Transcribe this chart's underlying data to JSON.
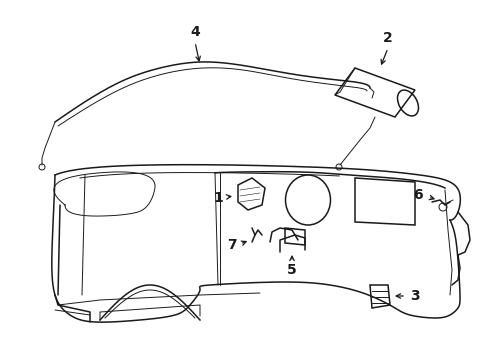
{
  "background_color": "#ffffff",
  "line_color": "#1a1a1a",
  "label_color": "#000000",
  "figsize": [
    4.89,
    3.6
  ],
  "dpi": 100,
  "lw_main": 1.1,
  "lw_thin": 0.7,
  "font_size": 9
}
